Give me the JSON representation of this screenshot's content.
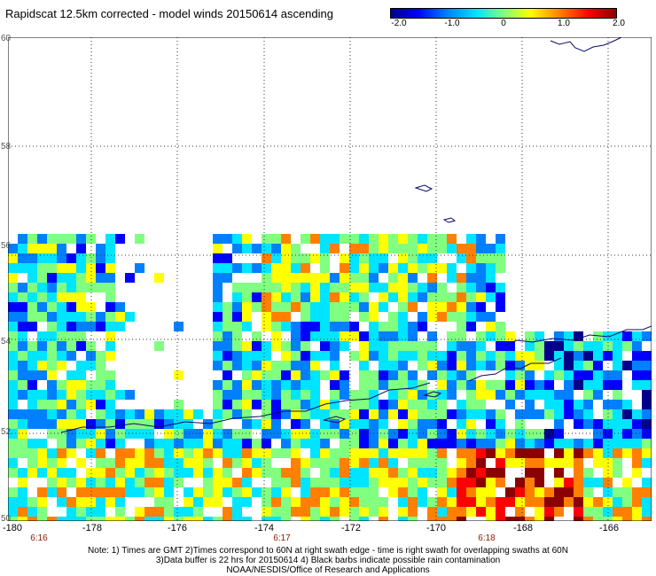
{
  "title": "Rapidscat 12.5km corrected - model winds 20150614 ascending",
  "colorbar": {
    "tick_labels": [
      "-2.0",
      "-1.0",
      "0",
      "1.0",
      "2.0"
    ],
    "colors": [
      "#00008b",
      "#0000ff",
      "#0080ff",
      "#00e5ff",
      "#80ff80",
      "#ffff00",
      "#ff8000",
      "#ff0000",
      "#8b0000"
    ]
  },
  "axes": {
    "latitude_labels": [
      "60",
      "58",
      "56",
      "54",
      "52",
      "50"
    ],
    "longitude_labels": [
      "-180",
      "-178",
      "-176",
      "-174",
      "-172",
      "-170",
      "-168",
      "-166"
    ],
    "time_labels": [
      "6:16",
      "6:17",
      "6:18"
    ]
  },
  "notes": [
    "Note: 1) Times are GMT 2)Times correspond to 60N at right swath edge - time is right swath for overlapping swaths at 60N",
    "3)Data buffer is 22 hrs for 20150614 4) Black barbs indicate possible rain contamination",
    "NOAA/NESDIS/Office of Research and Applications"
  ]
}
